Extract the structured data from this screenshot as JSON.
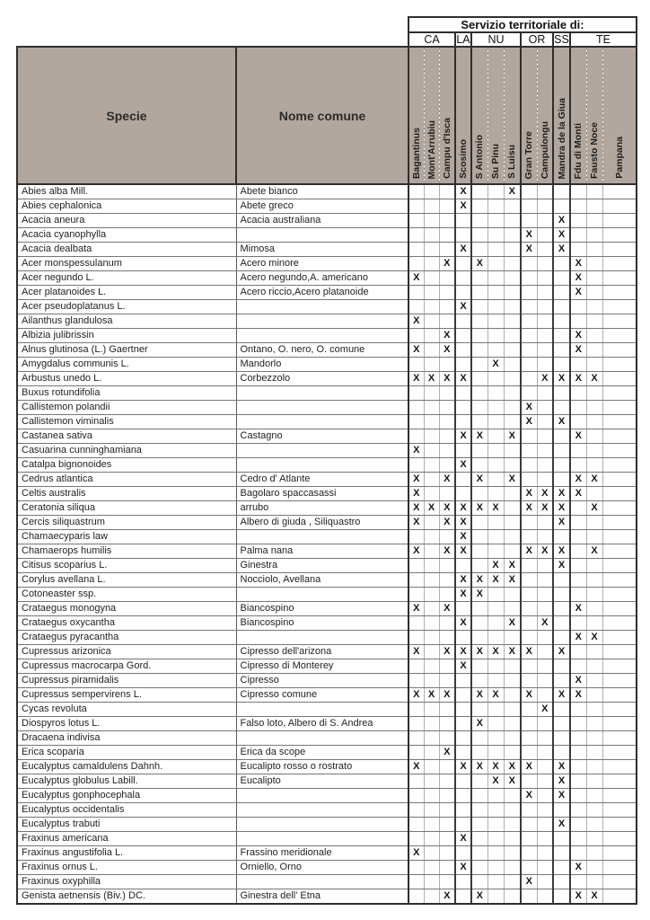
{
  "colors": {
    "header_bg": "#b2a79f",
    "border_dark": "#2e2e2e",
    "mark_color": "#161616"
  },
  "table": {
    "service_header": "Servizio territoriale di:",
    "species_header": "Specie",
    "common_name_header": "Nome comune",
    "mark": "X",
    "groups": [
      {
        "label": "CA",
        "span": 3
      },
      {
        "label": "LA",
        "span": 1
      },
      {
        "label": "NU",
        "span": 3
      },
      {
        "label": "OR",
        "span": 2
      },
      {
        "label": "SS",
        "span": 1
      },
      {
        "label": "TE",
        "span": 3
      }
    ],
    "stations": [
      "Bagantinus",
      "Mont'Arrubiu",
      "Campu d'Isca",
      "Scosimo",
      "S Antonio",
      "Su Pinu",
      "S Luisu",
      "Gran Torre",
      "Campulongu",
      "Mandra de la Giua",
      "Fdu di Monti",
      "Fausto Noce",
      "Pampana"
    ],
    "rows": [
      {
        "specie": "Abies alba Mill.",
        "nome": "Abete bianco",
        "marks": [
          4,
          7
        ]
      },
      {
        "specie": "Abies cephalonica",
        "nome": "Abete greco",
        "marks": [
          4
        ]
      },
      {
        "specie": "Acacia aneura",
        "nome": "Acacia australiana",
        "marks": [
          10
        ]
      },
      {
        "specie": "Acacia cyanophylla",
        "nome": "",
        "marks": [
          8,
          10
        ]
      },
      {
        "specie": "Acacia dealbata",
        "nome": "Mimosa",
        "marks": [
          4,
          8,
          10
        ]
      },
      {
        "specie": "Acer monspessulanum",
        "nome": "Acero minore",
        "marks": [
          3,
          5,
          11
        ]
      },
      {
        "specie": "Acer negundo L.",
        "nome": "Acero negundo,A. americano",
        "marks": [
          1,
          11
        ]
      },
      {
        "specie": "Acer platanoides L.",
        "nome": "Acero riccio,Acero platanoide",
        "marks": [
          11
        ]
      },
      {
        "specie": "Acer pseudoplatanus L.",
        "nome": "",
        "marks": [
          4
        ]
      },
      {
        "specie": "Ailanthus glandulosa",
        "nome": "",
        "marks": [
          1
        ]
      },
      {
        "specie": "Albizia julibrissin",
        "nome": "",
        "marks": [
          3,
          11
        ]
      },
      {
        "specie": "Alnus glutinosa (L.) Gaertner",
        "nome": "Ontano, O. nero, O. comune",
        "marks": [
          1,
          3,
          11
        ]
      },
      {
        "specie": "Amygdalus communis L.",
        "nome": "Mandorlo",
        "marks": [
          6
        ]
      },
      {
        "specie": "Arbustus unedo L.",
        "nome": "Corbezzolo",
        "marks": [
          1,
          2,
          3,
          4,
          9,
          10,
          11,
          12
        ]
      },
      {
        "specie": "Buxus rotundifolia",
        "nome": "",
        "marks": []
      },
      {
        "specie": "Callistemon polandii",
        "nome": "",
        "marks": [
          8
        ]
      },
      {
        "specie": "Callistemon viminalis",
        "nome": "",
        "marks": [
          8,
          10
        ]
      },
      {
        "specie": "Castanea sativa",
        "nome": "Castagno",
        "marks": [
          4,
          5,
          7,
          11
        ]
      },
      {
        "specie": "Casuarina cunninghamiana",
        "nome": "",
        "marks": [
          1
        ]
      },
      {
        "specie": "Catalpa bignonoides",
        "nome": "",
        "marks": [
          4
        ]
      },
      {
        "specie": "Cedrus atlantica",
        "nome": "Cedro d' Atlante",
        "marks": [
          1,
          3,
          5,
          7,
          11,
          12
        ]
      },
      {
        "specie": "Celtis australis",
        "nome": "Bagolaro spaccasassi",
        "marks": [
          1,
          8,
          9,
          10,
          11
        ]
      },
      {
        "specie": "Ceratonia siliqua",
        "nome": "arrubo",
        "marks": [
          1,
          2,
          3,
          4,
          5,
          6,
          8,
          9,
          10,
          12
        ]
      },
      {
        "specie": "Cercis siliquastrum",
        "nome": "Albero di giuda , Siliquastro",
        "marks": [
          1,
          3,
          4,
          10
        ]
      },
      {
        "specie": "Chamaecyparis law",
        "nome": "",
        "marks": [
          4
        ]
      },
      {
        "specie": "Chamaerops humilis",
        "nome": "Palma nana",
        "marks": [
          1,
          3,
          4,
          8,
          9,
          10,
          12
        ]
      },
      {
        "specie": "Citisus scoparius L.",
        "nome": "Ginestra",
        "marks": [
          6,
          7,
          10
        ]
      },
      {
        "specie": "Corylus avellana L.",
        "nome": "Nocciolo, Avellana",
        "marks": [
          4,
          5,
          6,
          7
        ]
      },
      {
        "specie": "Cotoneaster ssp.",
        "nome": "",
        "marks": [
          4,
          5
        ]
      },
      {
        "specie": "Crataegus monogyna",
        "nome": "Biancospino",
        "marks": [
          1,
          3,
          11
        ]
      },
      {
        "specie": "Crataegus oxycantha",
        "nome": "Biancospino",
        "marks": [
          4,
          7,
          9
        ]
      },
      {
        "specie": "Crataegus pyracantha",
        "nome": "",
        "marks": [
          11,
          12
        ]
      },
      {
        "specie": "Cupressus arizonica",
        "nome": "Cipresso dell'arizona",
        "marks": [
          1,
          3,
          4,
          5,
          6,
          7,
          8,
          10
        ]
      },
      {
        "specie": "Cupressus macrocarpa Gord.",
        "nome": "Cipresso di Monterey",
        "marks": [
          4
        ]
      },
      {
        "specie": "Cupressus piramidalis",
        "nome": "Cipresso",
        "marks": [
          11
        ]
      },
      {
        "specie": "Cupressus sempervirens L.",
        "nome": "Cipresso comune",
        "marks": [
          1,
          2,
          3,
          5,
          6,
          8,
          10,
          11
        ]
      },
      {
        "specie": "Cycas revoluta",
        "nome": "",
        "marks": [
          9
        ]
      },
      {
        "specie": "Diospyros lotus L.",
        "nome": "Falso loto, Albero di S. Andrea",
        "marks": [
          5
        ]
      },
      {
        "specie": "Dracaena indivisa",
        "nome": "",
        "marks": []
      },
      {
        "specie": "Erica scoparia",
        "nome": "Erica da scope",
        "marks": [
          3
        ]
      },
      {
        "specie": "Eucalyptus camaldulens Dahnh.",
        "nome": "Eucalipto rosso o rostrato",
        "marks": [
          1,
          4,
          5,
          6,
          7,
          8,
          10
        ]
      },
      {
        "specie": "Eucalyptus globulus Labill.",
        "nome": "Eucalipto",
        "marks": [
          6,
          7,
          10
        ]
      },
      {
        "specie": "Eucalyptus gonphocephala",
        "nome": "",
        "marks": [
          8,
          10
        ]
      },
      {
        "specie": "Eucalyptus occidentalis",
        "nome": "",
        "marks": []
      },
      {
        "specie": "Eucalyptus trabuti",
        "nome": "",
        "marks": [
          10
        ]
      },
      {
        "specie": "Fraxinus americana",
        "nome": "",
        "marks": [
          4
        ]
      },
      {
        "specie": "Fraxinus angustifolia L.",
        "nome": "Frassino meridionale",
        "marks": [
          1
        ]
      },
      {
        "specie": "Fraxinus ornus L.",
        "nome": "Orniello, Orno",
        "marks": [
          4,
          11
        ]
      },
      {
        "specie": "Fraxinus oxyphilla",
        "nome": "",
        "marks": [
          8
        ]
      },
      {
        "specie": "Genista aetnensis (Biv.) DC.",
        "nome": "Ginestra dell' Etna",
        "marks": [
          3,
          5,
          11,
          12
        ]
      }
    ]
  }
}
